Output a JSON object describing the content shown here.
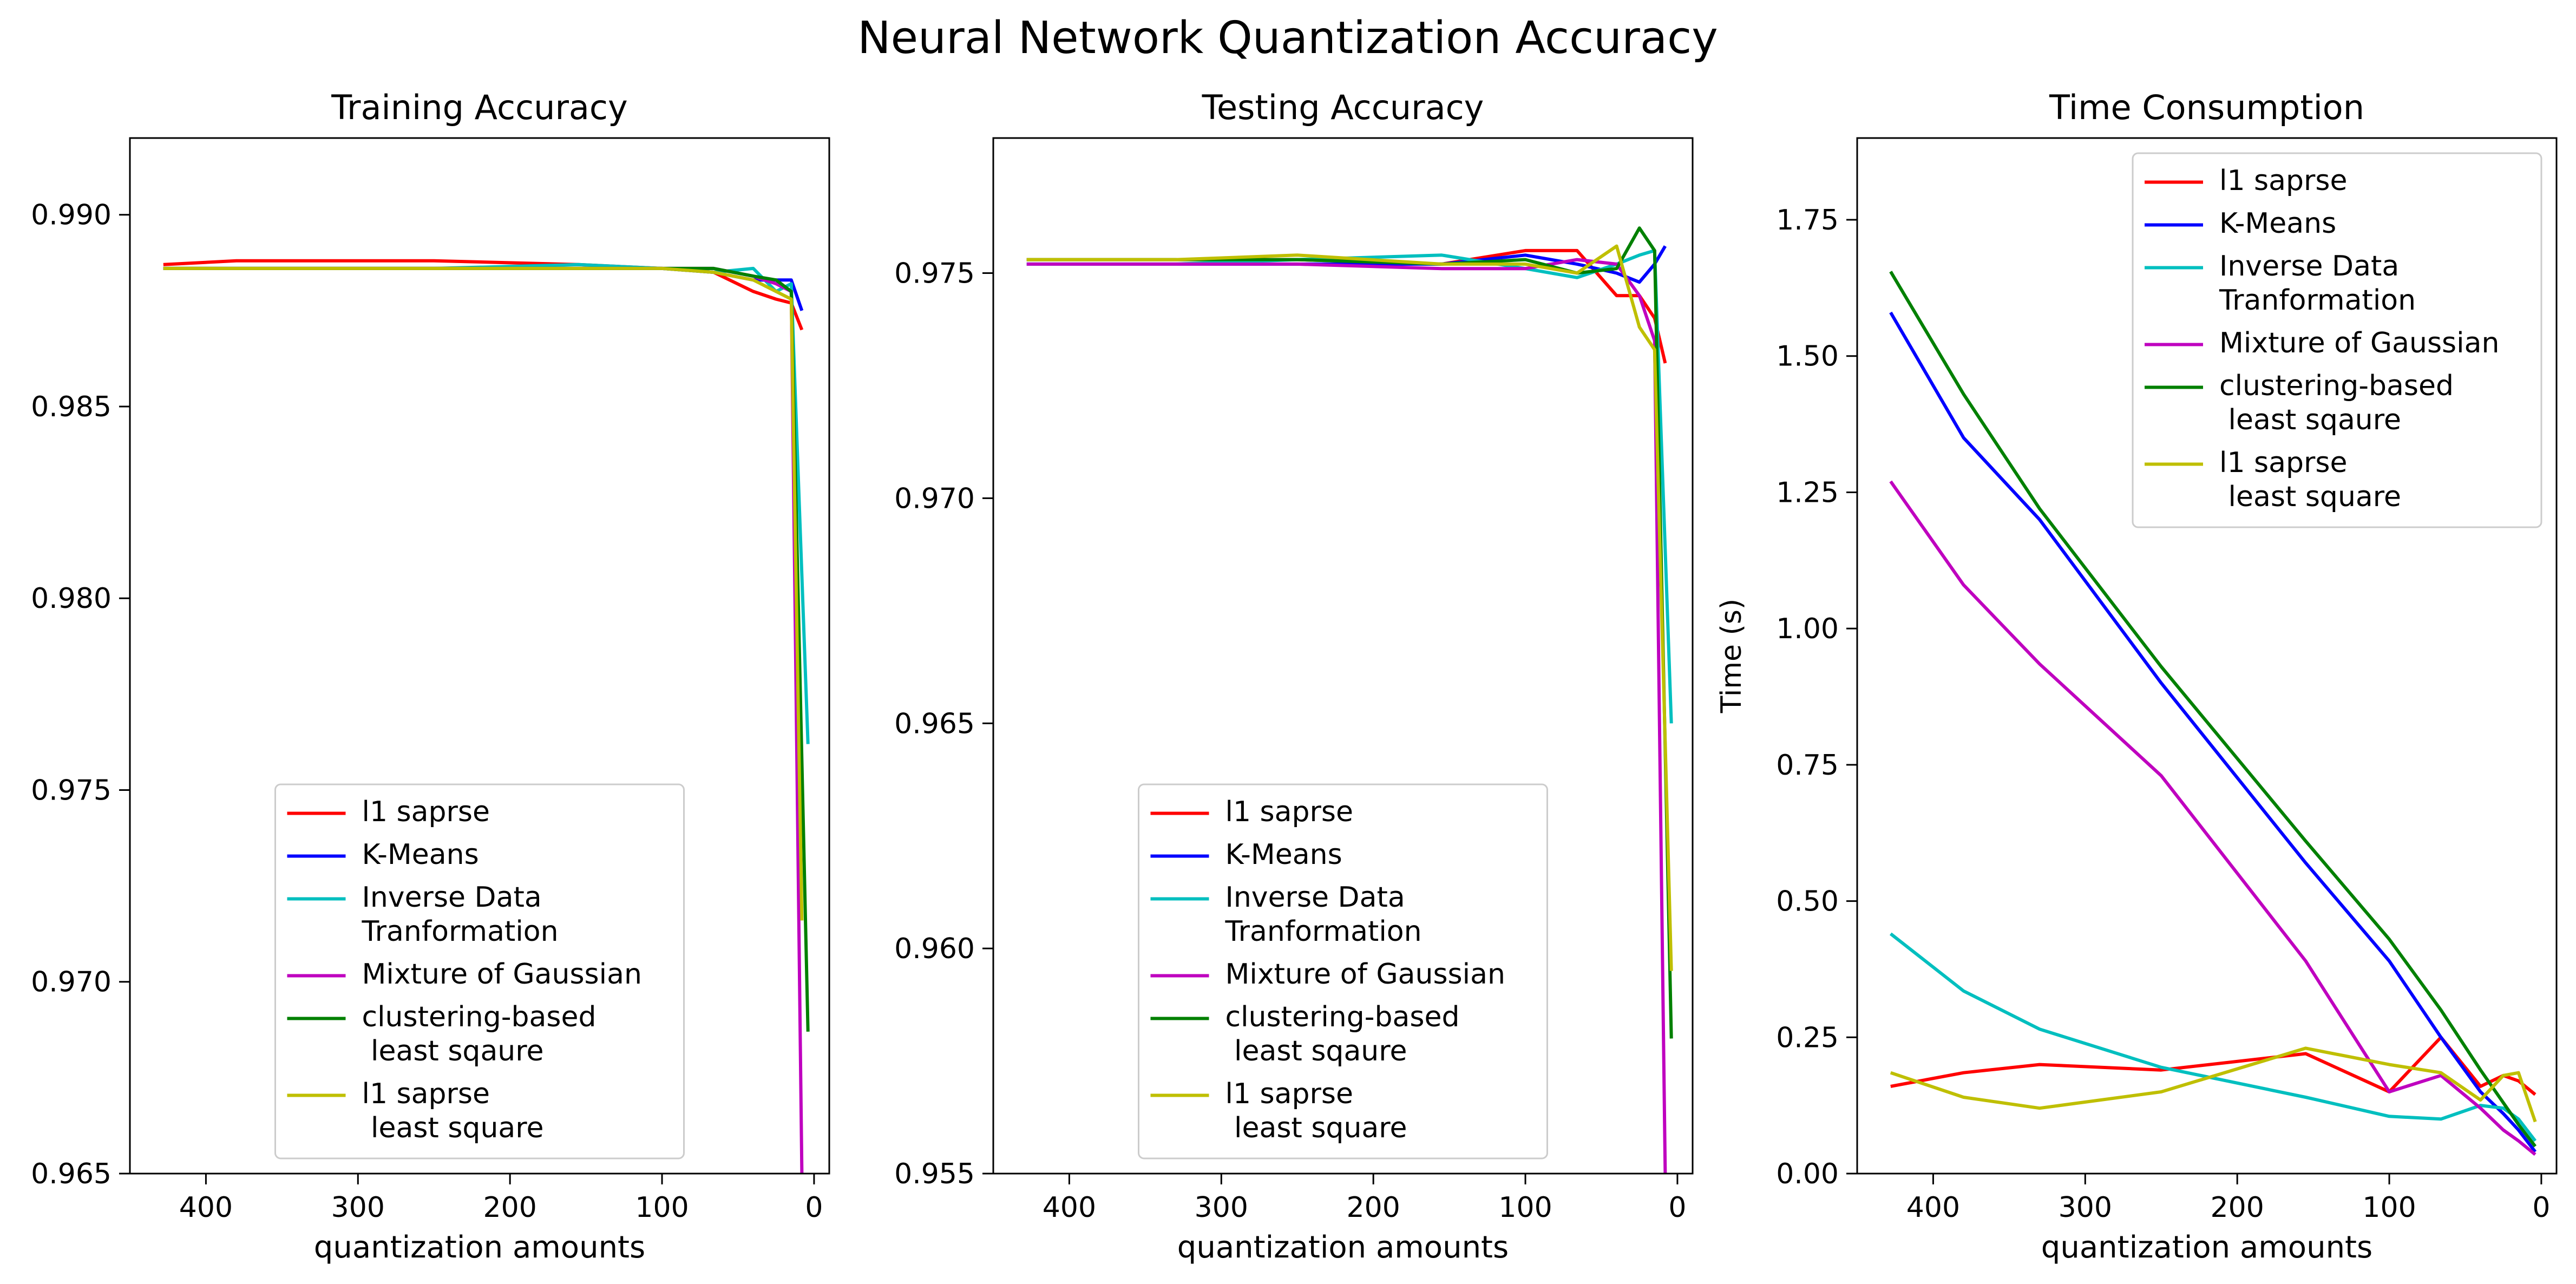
{
  "figure": {
    "suptitle": "Neural Network Quantization Accuracy"
  },
  "colors": {
    "red": "#ff0000",
    "blue": "#0000ff",
    "cyan": "#00bfbf",
    "magenta": "#bf00bf",
    "green": "#008000",
    "yellow": "#bfbf00"
  },
  "chart_data": [
    {
      "type": "line",
      "title": "Training Accuracy",
      "xlabel": "quantization amounts",
      "ylabel": "",
      "xlim": [
        450,
        -10
      ],
      "ylim": [
        0.965,
        0.992
      ],
      "xticks": [
        400,
        300,
        200,
        100,
        0
      ],
      "xtick_labels": [
        "400",
        "300",
        "200",
        "100",
        "0"
      ],
      "yticks": [
        0.965,
        0.97,
        0.975,
        0.98,
        0.985,
        0.99
      ],
      "ytick_labels": [
        "0.965",
        "0.970",
        "0.975",
        "0.980",
        "0.985",
        "0.990"
      ],
      "grid": false,
      "legend_position": "lower-center",
      "series": [
        {
          "name": "l1 saprse",
          "color": "#ff0000",
          "x": [
            428,
            380,
            330,
            250,
            155,
            100,
            66,
            40,
            25,
            15,
            8
          ],
          "y": [
            0.9887,
            0.9888,
            0.9888,
            0.9888,
            0.9887,
            0.9886,
            0.9885,
            0.988,
            0.9878,
            0.9877,
            0.987
          ]
        },
        {
          "name": "K-Means",
          "color": "#0000ff",
          "x": [
            428,
            380,
            330,
            250,
            155,
            100,
            66,
            40,
            25,
            15,
            8
          ],
          "y": [
            0.9886,
            0.9886,
            0.9886,
            0.9886,
            0.9886,
            0.9886,
            0.9885,
            0.9883,
            0.9883,
            0.9883,
            0.9875
          ]
        },
        {
          "name": "Inverse Data\nTranformation",
          "color": "#00bfbf",
          "x": [
            428,
            380,
            330,
            250,
            155,
            100,
            66,
            40,
            25,
            15,
            4
          ],
          "y": [
            0.9886,
            0.9886,
            0.9886,
            0.9886,
            0.9887,
            0.9886,
            0.9885,
            0.9886,
            0.988,
            0.9882,
            0.9762
          ]
        },
        {
          "name": "Mixture of Gaussian",
          "color": "#bf00bf",
          "x": [
            428,
            380,
            330,
            250,
            155,
            100,
            66,
            40,
            25,
            15,
            8
          ],
          "y": [
            0.9886,
            0.9886,
            0.9886,
            0.9886,
            0.9886,
            0.9886,
            0.9886,
            0.9884,
            0.9882,
            0.988,
            0.965
          ]
        },
        {
          "name": "clustering-based\n least sqaure",
          "color": "#008000",
          "x": [
            428,
            380,
            330,
            250,
            155,
            100,
            66,
            40,
            25,
            15,
            4
          ],
          "y": [
            0.9886,
            0.9886,
            0.9886,
            0.9886,
            0.9886,
            0.9886,
            0.9886,
            0.9884,
            0.9883,
            0.988,
            0.9687
          ]
        },
        {
          "name": "l1 saprse\n least square",
          "color": "#bfbf00",
          "x": [
            428,
            380,
            330,
            250,
            155,
            100,
            66,
            40,
            25,
            15,
            8
          ],
          "y": [
            0.9886,
            0.9886,
            0.9886,
            0.9886,
            0.9886,
            0.9886,
            0.9885,
            0.9883,
            0.988,
            0.9878,
            0.9716
          ]
        }
      ]
    },
    {
      "type": "line",
      "title": "Testing Accuracy",
      "xlabel": "quantization amounts",
      "ylabel": "",
      "xlim": [
        450,
        -10
      ],
      "ylim": [
        0.955,
        0.978
      ],
      "xticks": [
        400,
        300,
        200,
        100,
        0
      ],
      "xtick_labels": [
        "400",
        "300",
        "200",
        "100",
        "0"
      ],
      "yticks": [
        0.955,
        0.96,
        0.965,
        0.97,
        0.975
      ],
      "ytick_labels": [
        "0.955",
        "0.960",
        "0.965",
        "0.970",
        "0.975"
      ],
      "grid": false,
      "legend_position": "lower-center",
      "series": [
        {
          "name": "l1 saprse",
          "color": "#ff0000",
          "x": [
            428,
            380,
            330,
            250,
            155,
            100,
            66,
            40,
            25,
            15,
            8
          ],
          "y": [
            0.9753,
            0.9753,
            0.9753,
            0.9753,
            0.9752,
            0.9755,
            0.9755,
            0.9745,
            0.9745,
            0.974,
            0.973
          ]
        },
        {
          "name": "K-Means",
          "color": "#0000ff",
          "x": [
            428,
            380,
            330,
            250,
            155,
            100,
            66,
            40,
            25,
            15,
            8
          ],
          "y": [
            0.9752,
            0.9752,
            0.9752,
            0.9752,
            0.9752,
            0.9754,
            0.9752,
            0.975,
            0.9748,
            0.9752,
            0.9756
          ]
        },
        {
          "name": "Inverse Data\nTranformation",
          "color": "#00bfbf",
          "x": [
            428,
            380,
            330,
            250,
            155,
            100,
            66,
            40,
            25,
            15,
            4
          ],
          "y": [
            0.9752,
            0.9752,
            0.9752,
            0.9753,
            0.9754,
            0.9751,
            0.9749,
            0.9752,
            0.9754,
            0.9755,
            0.965
          ]
        },
        {
          "name": "Mixture of Gaussian",
          "color": "#bf00bf",
          "x": [
            428,
            380,
            330,
            250,
            155,
            100,
            66,
            40,
            25,
            15,
            8
          ],
          "y": [
            0.9752,
            0.9752,
            0.9752,
            0.9752,
            0.9751,
            0.9751,
            0.9753,
            0.9752,
            0.9745,
            0.9735,
            0.955
          ]
        },
        {
          "name": "clustering-based\n least sqaure",
          "color": "#008000",
          "x": [
            428,
            380,
            330,
            250,
            155,
            100,
            66,
            40,
            25,
            15,
            4
          ],
          "y": [
            0.9753,
            0.9753,
            0.9753,
            0.9753,
            0.9752,
            0.9753,
            0.975,
            0.9751,
            0.976,
            0.9755,
            0.958
          ]
        },
        {
          "name": "l1 saprse\n least square",
          "color": "#bfbf00",
          "x": [
            428,
            380,
            330,
            250,
            155,
            100,
            66,
            40,
            25,
            15,
            4
          ],
          "y": [
            0.9753,
            0.9753,
            0.9753,
            0.9754,
            0.9752,
            0.9752,
            0.975,
            0.9756,
            0.9738,
            0.9733,
            0.9595
          ]
        }
      ]
    },
    {
      "type": "line",
      "title": "Time Consumption",
      "xlabel": "quantization amounts",
      "ylabel": "Time (s)",
      "xlim": [
        450,
        -10
      ],
      "ylim": [
        0.0,
        1.9
      ],
      "xticks": [
        400,
        300,
        200,
        100,
        0
      ],
      "xtick_labels": [
        "400",
        "300",
        "200",
        "100",
        "0"
      ],
      "yticks": [
        0.0,
        0.25,
        0.5,
        0.75,
        1.0,
        1.25,
        1.5,
        1.75
      ],
      "ytick_labels": [
        "0.00",
        "0.25",
        "0.50",
        "0.75",
        "1.00",
        "1.25",
        "1.50",
        "1.75"
      ],
      "grid": false,
      "legend_position": "upper-right",
      "series": [
        {
          "name": "l1 saprse",
          "color": "#ff0000",
          "x": [
            428,
            380,
            330,
            250,
            155,
            100,
            66,
            40,
            25,
            15,
            4
          ],
          "y": [
            0.16,
            0.185,
            0.2,
            0.19,
            0.22,
            0.15,
            0.25,
            0.16,
            0.18,
            0.17,
            0.145
          ]
        },
        {
          "name": "K-Means",
          "color": "#0000ff",
          "x": [
            428,
            380,
            330,
            250,
            155,
            100,
            66,
            40,
            25,
            15,
            4
          ],
          "y": [
            1.58,
            1.35,
            1.2,
            0.9,
            0.57,
            0.39,
            0.25,
            0.15,
            0.11,
            0.08,
            0.04
          ]
        },
        {
          "name": "Inverse Data\nTranformation",
          "color": "#00bfbf",
          "x": [
            428,
            380,
            330,
            250,
            155,
            100,
            66,
            40,
            25,
            15,
            4
          ],
          "y": [
            0.44,
            0.335,
            0.265,
            0.195,
            0.14,
            0.105,
            0.1,
            0.125,
            0.12,
            0.1,
            0.06
          ]
        },
        {
          "name": "Mixture of Gaussian",
          "color": "#bf00bf",
          "x": [
            428,
            380,
            330,
            250,
            155,
            100,
            66,
            40,
            25,
            15,
            4
          ],
          "y": [
            1.27,
            1.08,
            0.935,
            0.73,
            0.39,
            0.15,
            0.18,
            0.12,
            0.08,
            0.06,
            0.035
          ]
        },
        {
          "name": "clustering-based\n least sqaure",
          "color": "#008000",
          "x": [
            428,
            380,
            330,
            250,
            155,
            100,
            66,
            40,
            25,
            15,
            4
          ],
          "y": [
            1.655,
            1.43,
            1.22,
            0.93,
            0.61,
            0.43,
            0.3,
            0.19,
            0.13,
            0.09,
            0.05
          ]
        },
        {
          "name": "l1 saprse\n least square",
          "color": "#bfbf00",
          "x": [
            428,
            380,
            330,
            250,
            155,
            100,
            66,
            40,
            25,
            15,
            4
          ],
          "y": [
            0.185,
            0.14,
            0.12,
            0.15,
            0.23,
            0.2,
            0.185,
            0.135,
            0.18,
            0.185,
            0.095
          ]
        }
      ]
    }
  ]
}
